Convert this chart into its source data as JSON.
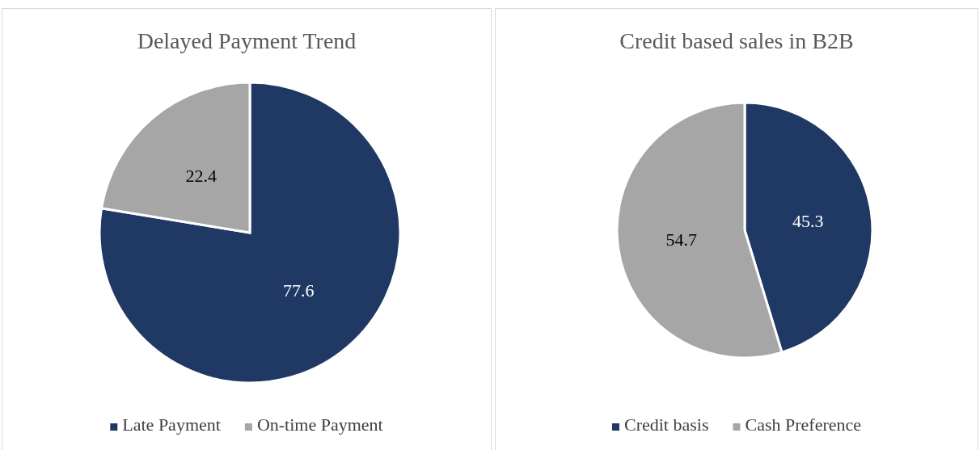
{
  "chart_data": [
    {
      "type": "pie",
      "title": "Delayed Payment Trend",
      "categories": [
        "Late Payment",
        "On-time Payment"
      ],
      "values": [
        77.6,
        22.4
      ],
      "colors": [
        "#203864",
        "#a6a6a6"
      ],
      "data_labels": true,
      "legend": "bottom"
    },
    {
      "type": "pie",
      "title": "Credit based sales in B2B",
      "categories": [
        "Credit basis",
        "Cash Preference"
      ],
      "values": [
        45.3,
        54.7
      ],
      "colors": [
        "#203864",
        "#a6a6a6"
      ],
      "data_labels": true,
      "legend": "bottom"
    }
  ]
}
